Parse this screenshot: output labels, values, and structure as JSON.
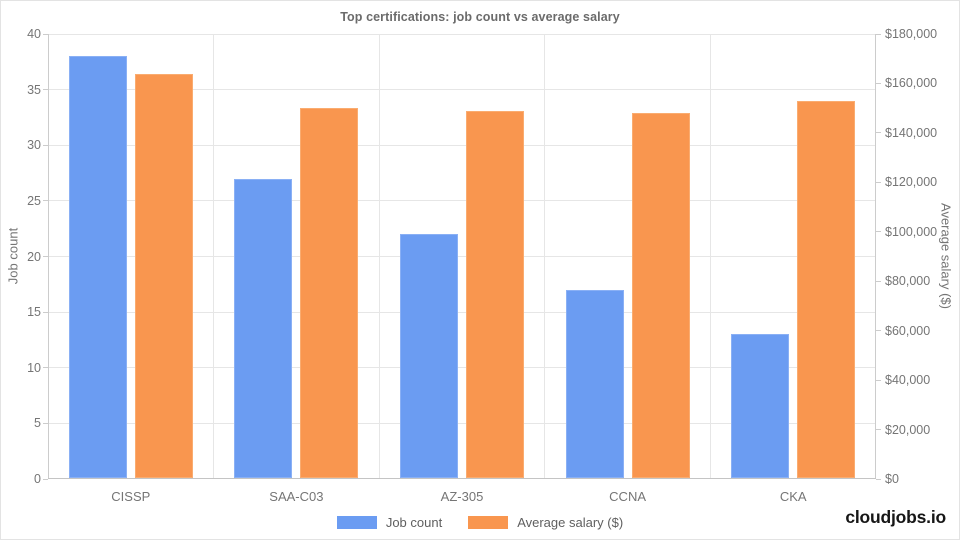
{
  "brand": "cloudjobs.io",
  "colors": {
    "job_count_bar": "#6B9CF2",
    "job_count_bar_edge": "#8AB0F5",
    "salary_bar": "#F9964F",
    "salary_bar_edge": "#FAAC70",
    "gridline": "#e6e6e6",
    "axis_line": "#cccccc",
    "tick_text": "#757575",
    "title_text": "#6b6b6b"
  },
  "chart_data": {
    "type": "bar",
    "title": "Top certifications: job count vs average salary",
    "categories": [
      "CISSP",
      "SAA-C03",
      "AZ-305",
      "CCNA",
      "CKA"
    ],
    "series": [
      {
        "name": "Job count",
        "axis": "left",
        "color": "#6B9CF2",
        "edge": "#8AB0F5",
        "values": [
          38,
          27,
          22,
          17,
          13
        ]
      },
      {
        "name": "Average salary ($)",
        "axis": "right",
        "color": "#F9964F",
        "edge": "#FAAC70",
        "values": [
          164000,
          150000,
          149000,
          148000,
          153000
        ]
      }
    ],
    "left_axis": {
      "title": "Job count",
      "min": 0,
      "max": 40,
      "step": 5,
      "prefix": ""
    },
    "right_axis": {
      "title": "Average salary ($)",
      "min": 0,
      "max": 180000,
      "step": 20000,
      "prefix": "$"
    },
    "legend_position": "bottom",
    "grid": true
  }
}
